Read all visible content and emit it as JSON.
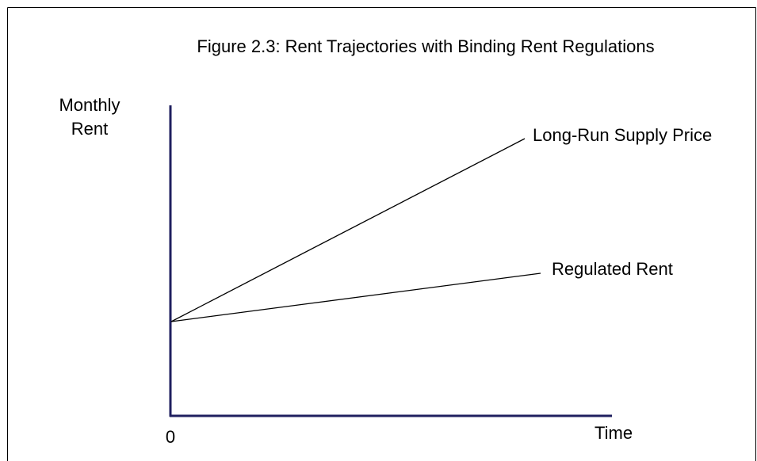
{
  "title": "Figure 2.3: Rent Trajectories with Binding Rent Regulations",
  "y_axis_label": [
    "Monthly",
    "Rent"
  ],
  "x_axis_label": "Time",
  "origin_label": "0",
  "lines": [
    {
      "label": "Long-Run Supply Price"
    },
    {
      "label": "Regulated Rent"
    }
  ]
}
